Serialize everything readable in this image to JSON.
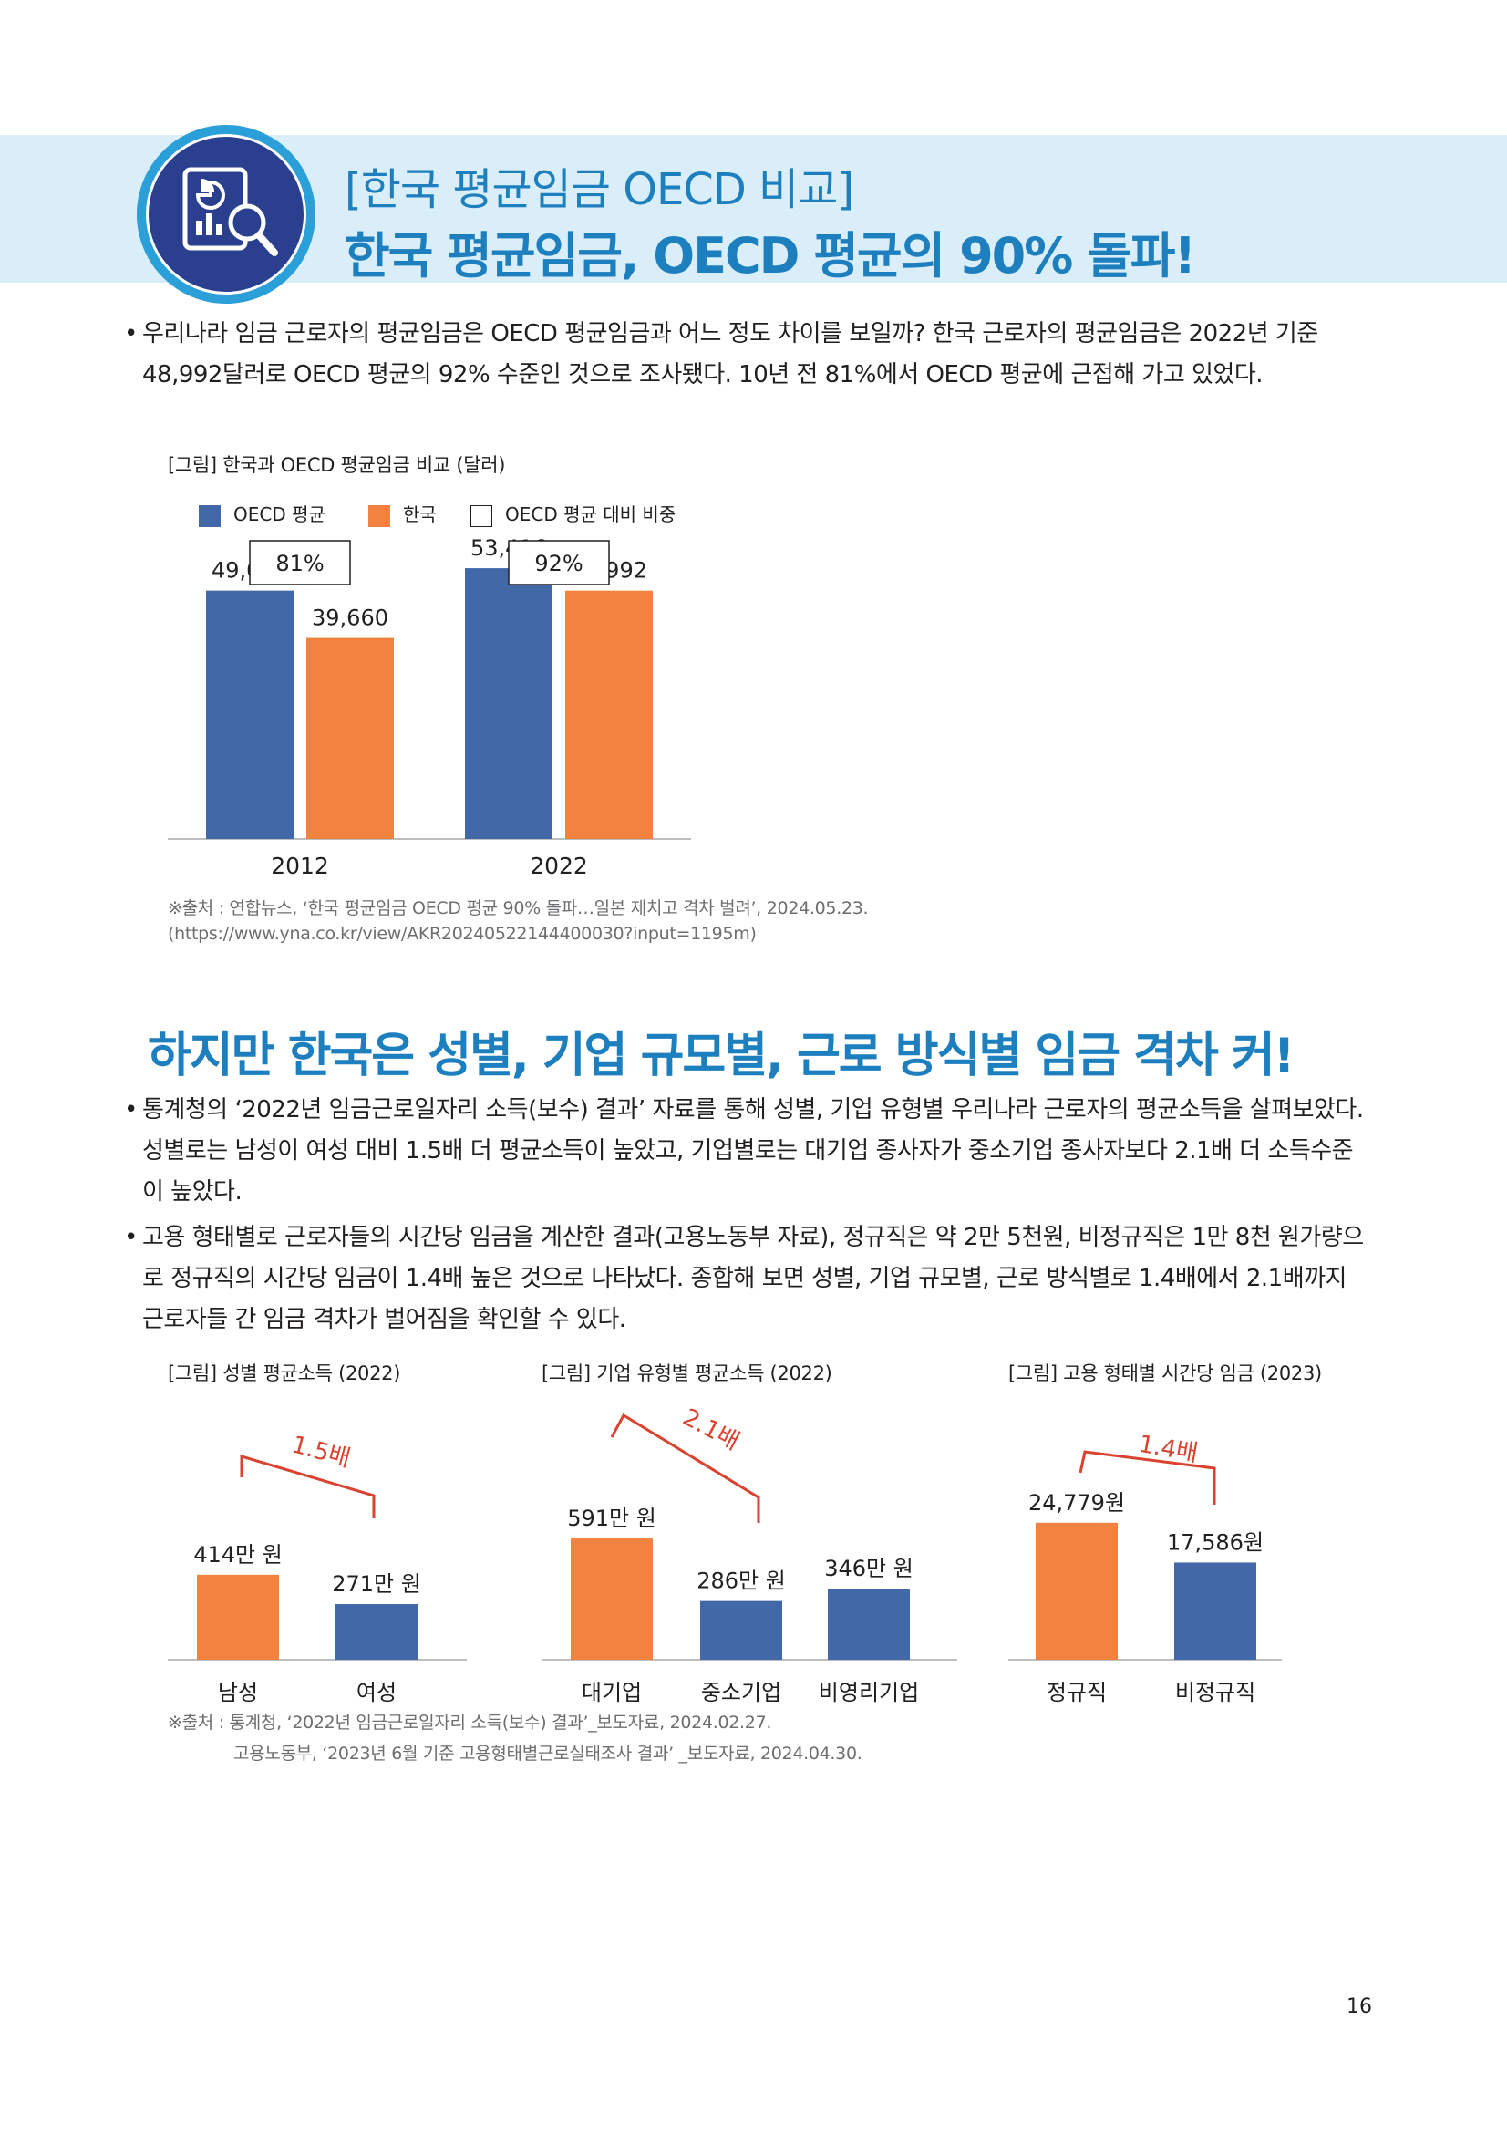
{
  "header": {
    "subtitle": "[한국 평균임금 OECD 비교]",
    "title": "한국 평균임금, OECD 평균의 90% 돌파!"
  },
  "intro": {
    "paragraph": "우리나라 임금 근로자의 평균임금은 OECD 평균임금과 어느 정도 차이를 보일까? 한국 근로자의 평균임금은 2022년 기준 48,992달러로 OECD 평균의 92% 수준인 것으로 조사됐다. 10년 전 81%에서 OECD 평균에 근접해 가고 있었다."
  },
  "chart_data": [
    {
      "type": "bar",
      "caption": "[그림] 한국과 OECD 평균임금 비교 (달러)",
      "legend": [
        "OECD 평균",
        "한국",
        "OECD 평균 대비 비중"
      ],
      "categories": [
        "2012",
        "2022"
      ],
      "series": [
        {
          "name": "OECD 평균",
          "values": [
            49003,
            53416
          ],
          "labels": [
            "49,003",
            "53,416"
          ],
          "color": "#4268a8"
        },
        {
          "name": "한국",
          "values": [
            39660,
            48992
          ],
          "labels": [
            "39,660",
            "48,992"
          ],
          "color": "#f2823f"
        }
      ],
      "ratio_labels": [
        "81%",
        "92%"
      ],
      "ylim": [
        0,
        60000
      ],
      "source": "※출처 : 연합뉴스, ‘한국 평균임금 OECD 평균 90% 돌파…일본 제치고 격차 벌려’, 2024.05.23. (https://www.yna.co.kr/view/AKR20240522144400030?input=1195m)"
    },
    {
      "type": "bar",
      "caption": "[그림] 성별 평균소득 (2022)",
      "categories": [
        "남성",
        "여성"
      ],
      "values": [
        414,
        271
      ],
      "labels": [
        "414만 원",
        "271만 원"
      ],
      "colors": [
        "#f2823f",
        "#4268a8"
      ],
      "annotation": "1.5배",
      "ylim": [
        0,
        700
      ]
    },
    {
      "type": "bar",
      "caption": "[그림] 기업 유형별 평균소득 (2022)",
      "categories": [
        "대기업",
        "중소기업",
        "비영리기업"
      ],
      "values": [
        591,
        286,
        346
      ],
      "labels": [
        "591만 원",
        "286만 원",
        "346만 원"
      ],
      "colors": [
        "#f2823f",
        "#4268a8",
        "#4268a8"
      ],
      "annotation": "2.1배",
      "ylim": [
        0,
        700
      ]
    },
    {
      "type": "bar",
      "caption": "[그림] 고용 형태별 시간당 임금 (2023)",
      "categories": [
        "정규직",
        "비정규직"
      ],
      "values": [
        24779,
        17586
      ],
      "labels": [
        "24,779원",
        "17,586원"
      ],
      "colors": [
        "#f2823f",
        "#4268a8"
      ],
      "annotation": "1.4배",
      "ylim": [
        0,
        40000
      ]
    }
  ],
  "section2": {
    "heading": "하지만 한국은 성별, 기업 규모별, 근로 방식별 임금 격차 커!",
    "bullet1": "통계청의 ‘2022년 임금근로일자리 소득(보수) 결과’ 자료를 통해 성별, 기업 유형별 우리나라 근로자의 평균소득을 살펴보았다. 성별로는 남성이 여성 대비 1.5배 더 평균소득이 높았고, 기업별로는 대기업 종사자가 중소기업 종사자보다 2.1배 더 소득수준이 높았다.",
    "bullet2": "고용 형태별로 근로자들의 시간당 임금을 계산한 결과(고용노동부 자료), 정규직은 약 2만 5천원, 비정규직은 1만 8천 원가량으로 정규직의 시간당 임금이 1.4배 높은 것으로 나타났다. 종합해 보면 성별, 기업 규모별, 근로 방식별로 1.4배에서 2.1배까지 근로자들 간 임금 격차가 벌어짐을 확인할 수 있다.",
    "source_line1": "※출처 : 통계청, ‘2022년 임금근로일자리 소득(보수) 결과’_보도자료, 2024.02.27.",
    "source_line2": "고용노동부, ‘2023년 6월 기준 고용형태별근로실태조사 결과’ _보도자료, 2024.04.30."
  },
  "footer": {
    "page_number": "16"
  }
}
